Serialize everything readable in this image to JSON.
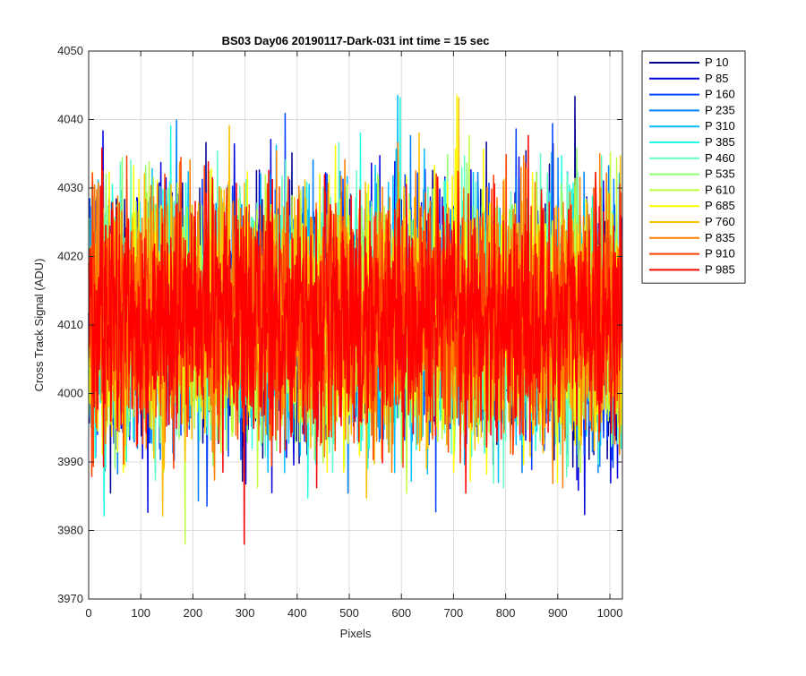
{
  "chart_data": {
    "type": "line",
    "title": "BS03 Day06 20190117-Dark-031 int time = 15 sec",
    "xlabel": "Pixels",
    "ylabel": "Cross Track Signal (ADU)",
    "xlim": [
      0,
      1024
    ],
    "ylim": [
      3970,
      4050
    ],
    "xticks": [
      0,
      100,
      200,
      300,
      400,
      500,
      600,
      700,
      800,
      900,
      1000
    ],
    "yticks": [
      3970,
      3980,
      3990,
      4000,
      4010,
      4020,
      4030,
      4040,
      4050
    ],
    "grid": true,
    "legend_position": "outside-top-right",
    "noise_model": {
      "mean": 4011,
      "std": 8.5,
      "min": 3978,
      "max": 4049,
      "n_points": 1024
    },
    "series": [
      {
        "name": "P 10",
        "color": "#00008f"
      },
      {
        "name": "P 85",
        "color": "#0000e0"
      },
      {
        "name": "P 160",
        "color": "#0040ff"
      },
      {
        "name": "P 235",
        "color": "#0080ff"
      },
      {
        "name": "P 310",
        "color": "#00bfff"
      },
      {
        "name": "P 385",
        "color": "#20ffdf"
      },
      {
        "name": "P 460",
        "color": "#60ffbf"
      },
      {
        "name": "P 535",
        "color": "#8fff70"
      },
      {
        "name": "P 610",
        "color": "#c0ff40"
      },
      {
        "name": "P 685",
        "color": "#ffff00"
      },
      {
        "name": "P 760",
        "color": "#ffbf00"
      },
      {
        "name": "P 835",
        "color": "#ff8000"
      },
      {
        "name": "P 910",
        "color": "#ff4000"
      },
      {
        "name": "P 985",
        "color": "#ff0000"
      }
    ]
  }
}
